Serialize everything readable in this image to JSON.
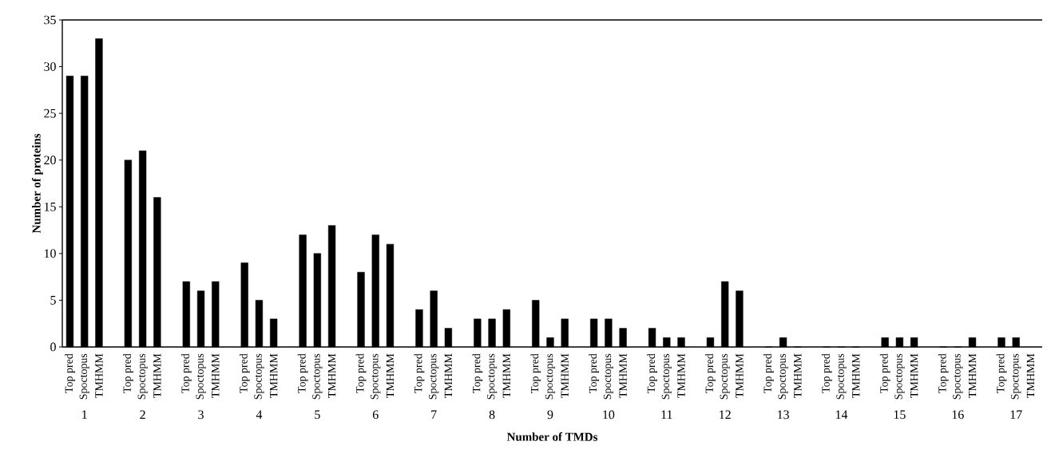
{
  "chart_data": {
    "type": "bar",
    "xlabel": "Number of TMDs",
    "ylabel": "Number of proteins",
    "categories": [
      "1",
      "2",
      "3",
      "4",
      "5",
      "6",
      "7",
      "8",
      "9",
      "10",
      "11",
      "12",
      "13",
      "14",
      "15",
      "16",
      "17"
    ],
    "series": [
      {
        "name": "Top pred",
        "color": "#000000",
        "values": [
          29,
          20,
          7,
          9,
          12,
          8,
          4,
          3,
          5,
          3,
          2,
          1,
          0,
          0,
          1,
          0,
          1
        ]
      },
      {
        "name": "Spoctopus",
        "color": "#000000",
        "values": [
          29,
          21,
          6,
          5,
          10,
          12,
          6,
          3,
          1,
          3,
          1,
          7,
          1,
          0,
          1,
          0,
          1
        ]
      },
      {
        "name": "TMHMM",
        "color": "#000000",
        "values": [
          33,
          16,
          7,
          3,
          13,
          11,
          2,
          4,
          3,
          2,
          1,
          6,
          0,
          0,
          1,
          1,
          null
        ]
      }
    ],
    "ylim": [
      0,
      35
    ],
    "yticks": [
      0,
      5,
      10,
      15,
      20,
      25,
      30,
      35
    ]
  }
}
